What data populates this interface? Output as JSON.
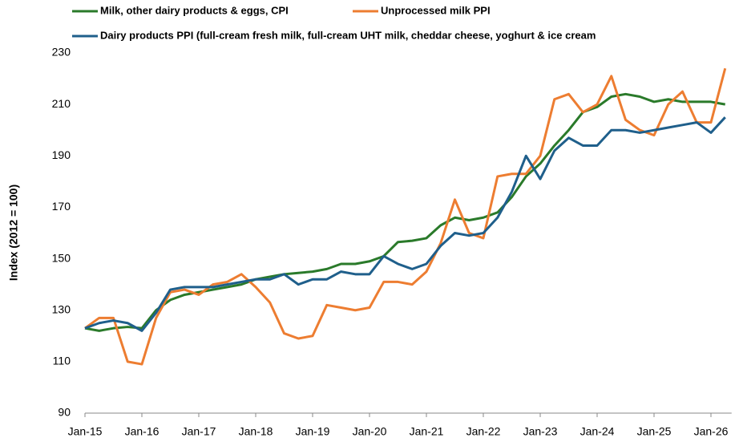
{
  "chart_data": {
    "type": "line",
    "y_label": "Index (2012 = 100)",
    "categories": [
      "Jan-15",
      null,
      null,
      null,
      "Jan-16",
      null,
      null,
      null,
      "Jan-17",
      null,
      null,
      null,
      "Jan-18",
      null,
      null,
      null,
      "Jan-19",
      null,
      null,
      null,
      "Jan-20",
      null,
      null,
      null,
      "Jan-21",
      null,
      null,
      null,
      "Jan-22",
      null,
      null,
      null,
      "Jan-23",
      null,
      null,
      null,
      "Jan-24",
      null,
      null,
      null,
      "Jan-25",
      null,
      null,
      null,
      "Jan-26",
      null
    ],
    "series": [
      {
        "name": "Milk, other dairy products & eggs, CPI",
        "color": "#2a7a2a",
        "values": [
          123,
          122,
          123,
          123.5,
          123,
          130,
          134,
          136,
          137,
          138,
          139,
          140,
          142,
          143,
          144,
          144.5,
          145,
          146,
          148,
          148,
          149,
          151,
          156.5,
          157,
          158,
          163,
          166,
          165,
          166,
          168,
          174,
          182,
          187,
          194,
          200,
          207,
          209,
          213,
          214,
          213,
          211,
          212,
          211,
          211,
          211,
          210
        ]
      },
      {
        "name": "Unprocessed milk PPI",
        "color": "#ed7d31",
        "values": [
          123,
          127,
          127,
          110,
          109,
          127,
          137,
          138,
          136,
          140,
          141,
          144,
          139,
          133,
          121,
          119,
          120,
          132,
          131,
          130,
          131,
          141,
          141,
          140,
          145,
          156,
          173,
          160,
          158,
          182,
          183,
          183,
          190,
          212,
          214,
          207,
          210,
          221,
          204,
          200,
          198,
          210,
          215,
          203,
          203,
          224
        ]
      },
      {
        "name": "Dairy products PPI (full-cream fresh milk, full-cream UHT milk, cheddar cheese, yoghurt & ice cream",
        "color": "#1f5f8b",
        "values": [
          123,
          125,
          126,
          125,
          122,
          129,
          138,
          139,
          139,
          139,
          140,
          141,
          142,
          142,
          144,
          140,
          142,
          142,
          145,
          144,
          144,
          151,
          148,
          146,
          148,
          155,
          160,
          159,
          160,
          166,
          176,
          190,
          181,
          192,
          197,
          194,
          194,
          200,
          200,
          199,
          200,
          201,
          202,
          203,
          199,
          205
        ]
      }
    ],
    "ylim": [
      90,
      230
    ],
    "yticks": [
      90,
      110,
      130,
      150,
      170,
      190,
      210,
      230
    ],
    "grid": false
  }
}
